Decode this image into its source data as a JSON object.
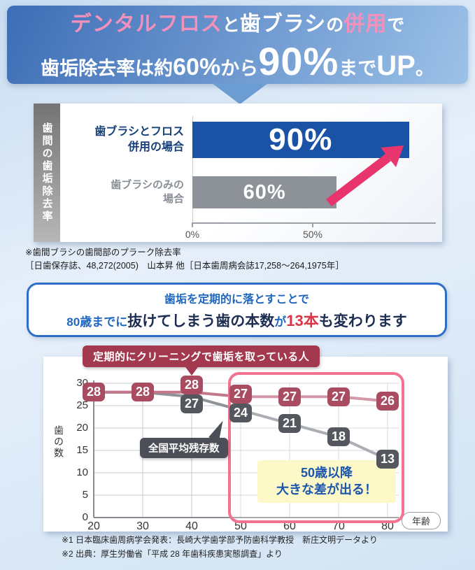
{
  "header": {
    "accent_color": "#f291bb",
    "bg_gradient": [
      "#3d6db6",
      "#9cc2e8"
    ],
    "pointer_color": "#6b9cd2",
    "line1": [
      {
        "text": "デンタルフロス",
        "style": "accent"
      },
      {
        "text": "と",
        "style": "plain-sm"
      },
      {
        "text": "歯ブラシ",
        "style": "plain"
      },
      {
        "text": "の",
        "style": "plain-sm"
      },
      {
        "text": "併用",
        "style": "accent"
      },
      {
        "text": "で",
        "style": "plain-sm"
      }
    ],
    "line2": [
      {
        "text": "歯垢除去率は約",
        "style": "base"
      },
      {
        "text": "60%",
        "style": "num-md"
      },
      {
        "text": "から",
        "style": "base"
      },
      {
        "text": "90%",
        "style": "num-xl"
      },
      {
        "text": "まで",
        "style": "base"
      },
      {
        "text": "UP",
        "style": "num-lg"
      },
      {
        "text": "。",
        "style": "base"
      }
    ]
  },
  "bar_section": {
    "footnote_lines": [
      "※歯間ブラシの歯間部のプラーク除去率",
      "［日歯保存誌、48,272(2005)　山本昇 他［日本歯周病会誌17,258～264,1975年］"
    ]
  },
  "info_box": {
    "border_color": "#2d6fc8",
    "line1": "歯垢を定期的に落とすことで",
    "line2": [
      {
        "text": "80歳までに",
        "style": "info-blue"
      },
      {
        "text": "抜けてしまう歯の本数",
        "style": "info-navy-lg"
      },
      {
        "text": "が",
        "style": "info-blue"
      },
      {
        "text": "13本",
        "style": "info-red-lg"
      },
      {
        "text": "も変わります",
        "style": "info-navy-lg"
      }
    ]
  },
  "line_section": {
    "badge_top": "定期的にクリーニングで歯垢を取っている人",
    "badge_top_color": "#a2394f",
    "badge_avg": "全国平均残存数",
    "badge_avg_color": "#4d4f58"
  },
  "footer_notes": [
    "※1 日本臨床歯周病学会発表：長崎大学歯学部予防歯科学教授　新庄文明データより",
    "※2 出典：厚生労働省「平成 28 年歯科疾患実態調査」より"
  ],
  "chart_data": [
    {
      "type": "bar",
      "orientation": "horizontal",
      "title": "歯間の歯垢除去率",
      "categories": [
        "歯ブラシとフロス\n併用の場合",
        "歯ブラシのみの\n場合"
      ],
      "values": [
        90,
        60
      ],
      "value_labels": [
        "90%",
        "60%"
      ],
      "bar_colors": [
        "#1a52a5",
        "#8d9298"
      ],
      "xticks": [
        "0%",
        "50%"
      ],
      "xtick_values": [
        0,
        50
      ],
      "xlim": [
        0,
        100
      ],
      "arrow_color": "#e8356e"
    },
    {
      "type": "line",
      "x": [
        20,
        30,
        40,
        50,
        60,
        70,
        80
      ],
      "xlabel": "年齢",
      "ylabel": "歯の数",
      "ylim": [
        0,
        30
      ],
      "yticks": [
        0,
        5,
        10,
        15,
        20,
        25,
        30
      ],
      "series": [
        {
          "name": "定期的にクリーニングで歯垢を取っている人",
          "values": [
            28,
            28,
            28,
            27,
            27,
            27,
            26
          ],
          "marker_color": "#a94b61",
          "line_color": "#c4768a"
        },
        {
          "name": "全国平均残存数",
          "values": [
            28,
            28,
            27,
            24,
            21,
            18,
            13
          ],
          "marker_color": "#55575e",
          "line_color": "#8f9398"
        }
      ],
      "highlight_range": [
        50,
        80
      ],
      "highlight_color": "#f2738f",
      "annotation": "50歳以降\n大きな差が出る！",
      "annotation_bg": "#fcf8c8",
      "annotation_color": "#1a55ae",
      "grid": true,
      "legend_position": "none"
    }
  ]
}
